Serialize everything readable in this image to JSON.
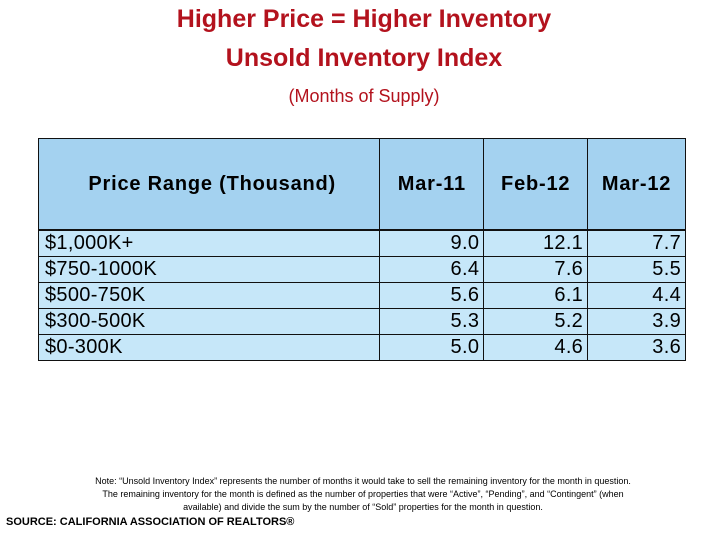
{
  "slide": {
    "title_line1": "Higher Price = Higher Inventory",
    "title_line2": "Unsold Inventory Index",
    "subtitle": "(Months of Supply)"
  },
  "table": {
    "headers": [
      "Price Range (Thousand)",
      "Mar-11",
      "Feb-12",
      "Mar-12"
    ],
    "rows": [
      [
        "$1,000K+",
        "9.0",
        "12.1",
        "7.7"
      ],
      [
        "$750-1000K",
        "6.4",
        "7.6",
        "5.5"
      ],
      [
        "$500-750K",
        "5.6",
        "6.1",
        "4.4"
      ],
      [
        "$300-500K",
        "5.3",
        "5.2",
        "3.9"
      ],
      [
        "$0-300K",
        "5.0",
        "4.6",
        "3.6"
      ]
    ]
  },
  "footer": {
    "note_line1": "Note: “Unsold Inventory Index” represents the number of months it would take to sell the remaining inventory for the month in question.",
    "note_line2": "The remaining inventory for the month is defined as the number of properties that were “Active”, “Pending”, and “Contingent” (when",
    "note_line3": "available) and divide the sum by the number of “Sold” properties for the month in question.",
    "source": "SOURCE: CALIFORNIA ASSOCIATION OF REALTORS®"
  },
  "colors": {
    "title": "#b3121d",
    "header_fill": "#a4d2f0",
    "row_fill": "#c6e7f9"
  }
}
